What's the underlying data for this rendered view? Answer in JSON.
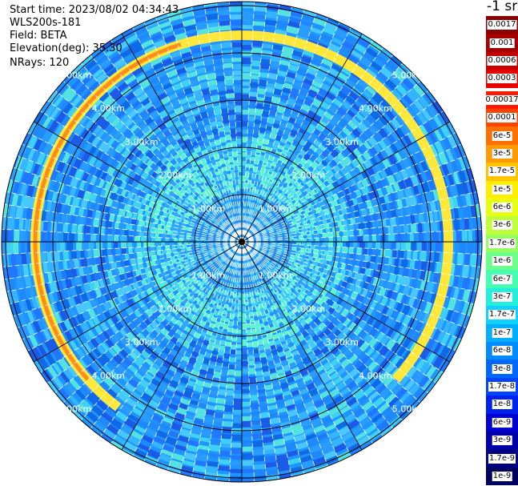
{
  "info": {
    "start_time": "Start time: 2023/08/02 04:34:43",
    "device": "WLS200s-181",
    "field": "Field: BETA",
    "elevation": "Elevation(deg): 35.30",
    "nrays": "NRays: 120"
  },
  "unit_label": "-1 sr",
  "range_labels": [
    "1.00km",
    "2.00km",
    "3.00km",
    "4.00km",
    "5.00km"
  ],
  "legend": {
    "upper": [
      {
        "label": "0.0017",
        "color": "#8b0000"
      },
      {
        "label": "0.001",
        "color": "#a50000"
      },
      {
        "label": "0.0006",
        "color": "#c40000"
      },
      {
        "label": "0.0003",
        "color": "#e60000"
      }
    ],
    "lower": [
      {
        "label": "0.00017",
        "color": "#ff1a00"
      },
      {
        "label": "0.0001",
        "color": "#ff4400"
      },
      {
        "label": "6e-5",
        "color": "#ff7000"
      },
      {
        "label": "3e-5",
        "color": "#ff9a00"
      },
      {
        "label": "1.7e-5",
        "color": "#ffc400"
      },
      {
        "label": "1e-5",
        "color": "#ffee00"
      },
      {
        "label": "6e-6",
        "color": "#e6ff10"
      },
      {
        "label": "3e-6",
        "color": "#bfff38"
      },
      {
        "label": "1.7e-6",
        "color": "#96ff60"
      },
      {
        "label": "1e-6",
        "color": "#6cff8a"
      },
      {
        "label": "6e-7",
        "color": "#44ffb2"
      },
      {
        "label": "3e-7",
        "color": "#22f0dc"
      },
      {
        "label": "1.7e-7",
        "color": "#10d2ff"
      },
      {
        "label": "1e-7",
        "color": "#00b0ff"
      },
      {
        "label": "6e-8",
        "color": "#008cff"
      },
      {
        "label": "3e-8",
        "color": "#0068ff"
      },
      {
        "label": "1.7e-8",
        "color": "#0044ff"
      },
      {
        "label": "1e-8",
        "color": "#0022ee"
      },
      {
        "label": "6e-9",
        "color": "#0000d0"
      },
      {
        "label": "3e-9",
        "color": "#0000aa"
      },
      {
        "label": "1.7e-9",
        "color": "#000084"
      },
      {
        "label": "1e-9",
        "color": "#000060"
      }
    ]
  },
  "plot_colors": {
    "background": "#1f95ff",
    "inner": "#4fe8e6",
    "center": "#2a8cf0",
    "ring": "#ffe83a",
    "ring_core": "#ff8c1a",
    "grid": "#000000",
    "tick_label": "#ffffff"
  }
}
